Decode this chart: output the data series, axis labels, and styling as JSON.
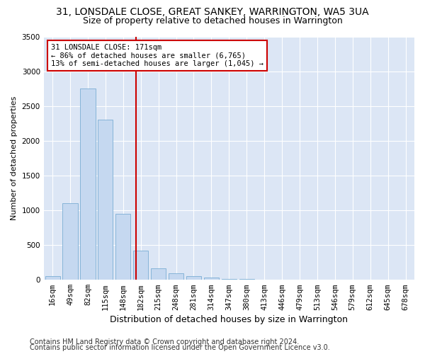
{
  "title1": "31, LONSDALE CLOSE, GREAT SANKEY, WARRINGTON, WA5 3UA",
  "title2": "Size of property relative to detached houses in Warrington",
  "xlabel": "Distribution of detached houses by size in Warrington",
  "ylabel": "Number of detached properties",
  "categories": [
    "16sqm",
    "49sqm",
    "82sqm",
    "115sqm",
    "148sqm",
    "182sqm",
    "215sqm",
    "248sqm",
    "281sqm",
    "314sqm",
    "347sqm",
    "380sqm",
    "413sqm",
    "446sqm",
    "479sqm",
    "513sqm",
    "546sqm",
    "579sqm",
    "612sqm",
    "645sqm",
    "678sqm"
  ],
  "values": [
    50,
    1100,
    2750,
    2300,
    950,
    420,
    165,
    90,
    55,
    35,
    15,
    8,
    5,
    3,
    2,
    1,
    1,
    0,
    0,
    0,
    0
  ],
  "bar_color": "#c5d8f0",
  "bar_edge_color": "#7aadd4",
  "vline_color": "#cc0000",
  "annotation_text": "31 LONSDALE CLOSE: 171sqm\n← 86% of detached houses are smaller (6,765)\n13% of semi-detached houses are larger (1,045) →",
  "annotation_box_color": "#ffffff",
  "annotation_box_edge": "#cc0000",
  "ylim": [
    0,
    3500
  ],
  "yticks": [
    0,
    500,
    1000,
    1500,
    2000,
    2500,
    3000,
    3500
  ],
  "footer1": "Contains HM Land Registry data © Crown copyright and database right 2024.",
  "footer2": "Contains public sector information licensed under the Open Government Licence v3.0.",
  "fig_bg_color": "#ffffff",
  "plot_bg_color": "#dce6f5",
  "title1_fontsize": 10,
  "title2_fontsize": 9,
  "xlabel_fontsize": 9,
  "ylabel_fontsize": 8,
  "tick_fontsize": 7.5,
  "footer_fontsize": 7,
  "vline_pos": 4.72
}
